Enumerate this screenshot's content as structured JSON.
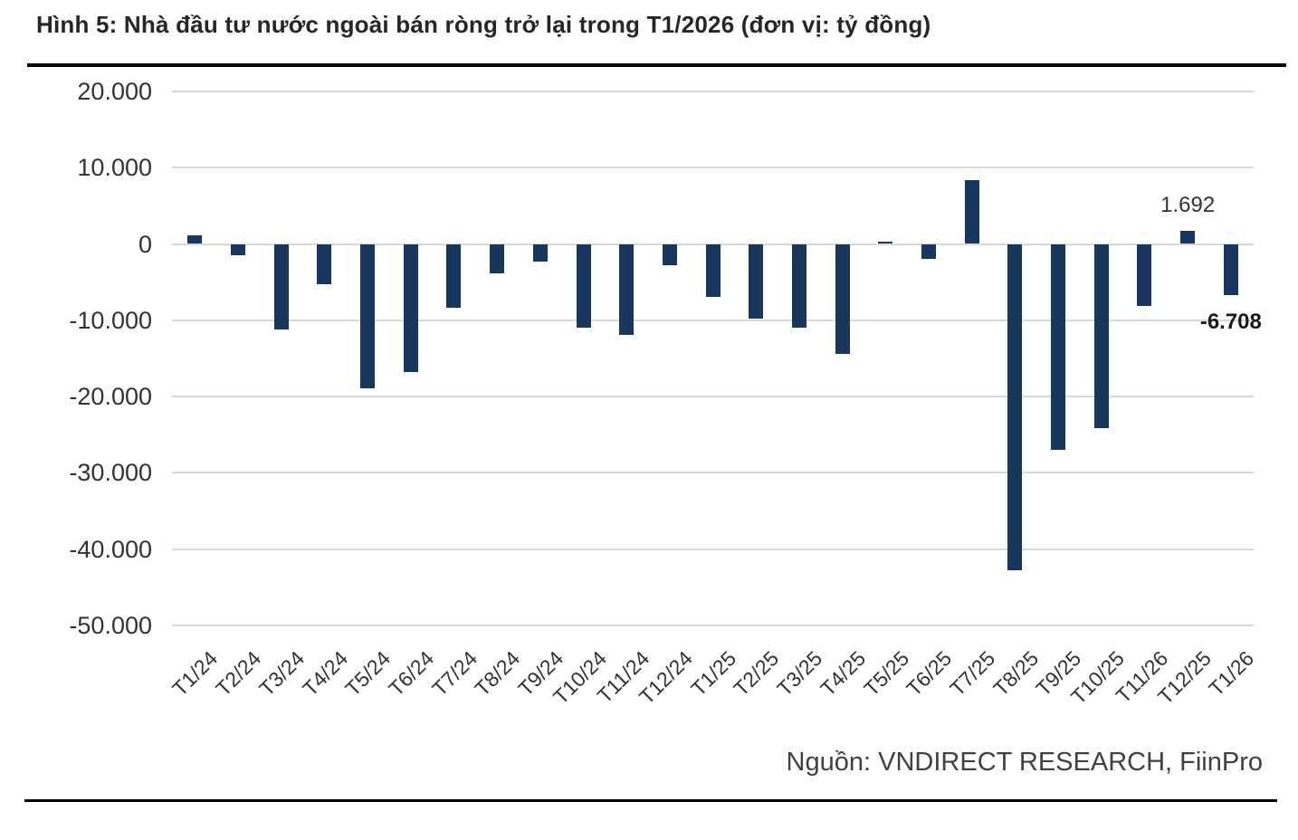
{
  "title": "Hình 5: Nhà đầu tư nước ngoài bán ròng trở lại trong T1/2026 (đơn vị: tỷ đồng)",
  "source_note": "Nguồn: VNDIRECT RESEARCH, FiinPro",
  "colors": {
    "bar": "#17375E",
    "gridline": "#D9D9D9",
    "title_text": "#262626",
    "axis_text": "#333333",
    "rule": "#000000"
  },
  "chart_data": {
    "type": "bar",
    "title": "Hình 5: Nhà đầu tư nước ngoài bán ròng trở lại trong T1/2026 (đơn vị: tỷ đồng)",
    "unit": "tỷ đồng",
    "categories": [
      "T1/24",
      "T2/24",
      "T3/24",
      "T4/24",
      "T5/24",
      "T6/24",
      "T7/24",
      "T8/24",
      "T9/24",
      "T10/24",
      "T11/24",
      "T12/24",
      "T1/25",
      "T2/25",
      "T3/25",
      "T4/25",
      "T5/25",
      "T6/25",
      "T7/25",
      "T8/25",
      "T9/25",
      "T10/25",
      "T11/26",
      "T12/25",
      "T1/26"
    ],
    "values": [
      1100,
      -1500,
      -11200,
      -5300,
      -18900,
      -16800,
      -8400,
      -3800,
      -2300,
      -11000,
      -11900,
      -2800,
      -7000,
      -9800,
      -11000,
      -14400,
      300,
      -1900,
      8400,
      -42800,
      -27000,
      -24200,
      -8100,
      1692,
      -6708
    ],
    "ylim": [
      -50000,
      20000
    ],
    "ytick_step": 10000,
    "ytick_labels": [
      "20.000",
      "10.000",
      "0",
      "-10.000",
      "-20.000",
      "-30.000",
      "-40.000",
      "-50.000"
    ],
    "grid": true,
    "legend": null,
    "annotations": [
      {
        "category": "T12/25",
        "text": "1.692",
        "bold": false
      },
      {
        "category": "T1/26",
        "text": "-6.708",
        "bold": true
      }
    ]
  }
}
